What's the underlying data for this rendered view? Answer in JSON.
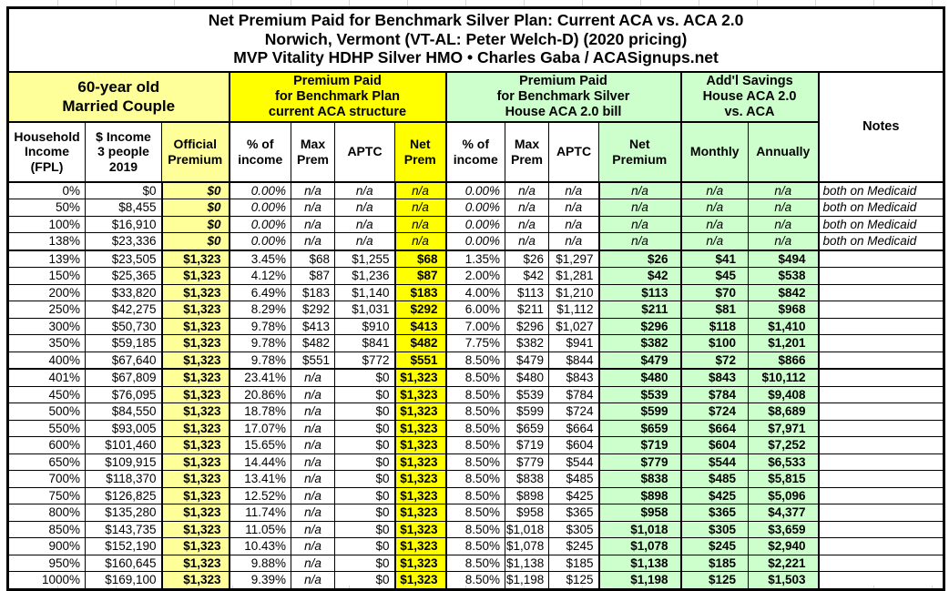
{
  "title": {
    "line1": "Net Premium Paid for Benchmark Silver Plan: Current ACA vs. ACA 2.0",
    "line2": "Norwich, Vermont (VT-AL: Peter Welch-D) (2020 pricing)",
    "line3": "MVP Vitality HDHP Silver HMO • Charles Gaba / ACASignups.net"
  },
  "colors": {
    "pale_yellow": "#FFFF99",
    "bright_yellow": "#FFFF00",
    "light_green": "#CCFFCC",
    "border": "#000000",
    "background": "#FFFFFF"
  },
  "header": {
    "group_household": "60-year old\nMarried Couple",
    "group_current_aca": "Premium Paid\nfor Benchmark Plan\ncurrent ACA structure",
    "group_aca2": "Premium Paid\nfor Benchmark Silver\nHouse ACA 2.0 bill",
    "group_savings": "Add'l Savings\nHouse ACA 2.0\nvs. ACA",
    "notes": "Notes",
    "columns": [
      "Household\nIncome\n(FPL)",
      "$ Income\n3 people\n2019",
      "Official\nPremium",
      "% of\nincome",
      "Max\nPrem",
      "APTC",
      "Net\nPrem",
      "% of\nincome",
      "Max\nPrem",
      "APTC",
      "Net\nPremium",
      "Monthly",
      "Annually"
    ]
  },
  "chart_data": {
    "type": "table",
    "title": "Net Premium Paid for Benchmark Silver Plan: Current ACA vs. ACA 2.0 — Norwich, Vermont (VT-AL: Peter Welch-D) (2020 pricing) — MVP Vitality HDHP Silver HMO",
    "columns": [
      "household_income_fpl",
      "income_3_people_2019",
      "official_premium",
      "aca_pct_of_income",
      "aca_max_prem",
      "aca_aptc",
      "aca_net_prem",
      "aca2_pct_of_income",
      "aca2_max_prem",
      "aca2_aptc",
      "aca2_net_premium",
      "savings_monthly",
      "savings_annually",
      "notes"
    ],
    "rows": [
      [
        "0%",
        "$0",
        "$0",
        "0.00%",
        "n/a",
        "n/a",
        "n/a",
        "0.00%",
        "n/a",
        "n/a",
        "n/a",
        "n/a",
        "n/a",
        "both on Medicaid"
      ],
      [
        "50%",
        "$8,455",
        "$0",
        "0.00%",
        "n/a",
        "n/a",
        "n/a",
        "0.00%",
        "n/a",
        "n/a",
        "n/a",
        "n/a",
        "n/a",
        "both on Medicaid"
      ],
      [
        "100%",
        "$16,910",
        "$0",
        "0.00%",
        "n/a",
        "n/a",
        "n/a",
        "0.00%",
        "n/a",
        "n/a",
        "n/a",
        "n/a",
        "n/a",
        "both on Medicaid"
      ],
      [
        "138%",
        "$23,336",
        "$0",
        "0.00%",
        "n/a",
        "n/a",
        "n/a",
        "0.00%",
        "n/a",
        "n/a",
        "n/a",
        "n/a",
        "n/a",
        "both on Medicaid"
      ],
      [
        "139%",
        "$23,505",
        "$1,323",
        "3.45%",
        "$68",
        "$1,255",
        "$68",
        "1.35%",
        "$26",
        "$1,297",
        "$26",
        "$41",
        "$494",
        ""
      ],
      [
        "150%",
        "$25,365",
        "$1,323",
        "4.12%",
        "$87",
        "$1,236",
        "$87",
        "2.00%",
        "$42",
        "$1,281",
        "$42",
        "$45",
        "$538",
        ""
      ],
      [
        "200%",
        "$33,820",
        "$1,323",
        "6.49%",
        "$183",
        "$1,140",
        "$183",
        "4.00%",
        "$113",
        "$1,210",
        "$113",
        "$70",
        "$842",
        ""
      ],
      [
        "250%",
        "$42,275",
        "$1,323",
        "8.29%",
        "$292",
        "$1,031",
        "$292",
        "6.00%",
        "$211",
        "$1,112",
        "$211",
        "$81",
        "$968",
        ""
      ],
      [
        "300%",
        "$50,730",
        "$1,323",
        "9.78%",
        "$413",
        "$910",
        "$413",
        "7.00%",
        "$296",
        "$1,027",
        "$296",
        "$118",
        "$1,410",
        ""
      ],
      [
        "350%",
        "$59,185",
        "$1,323",
        "9.78%",
        "$482",
        "$841",
        "$482",
        "7.75%",
        "$382",
        "$941",
        "$382",
        "$100",
        "$1,201",
        ""
      ],
      [
        "400%",
        "$67,640",
        "$1,323",
        "9.78%",
        "$551",
        "$772",
        "$551",
        "8.50%",
        "$479",
        "$844",
        "$479",
        "$72",
        "$866",
        ""
      ],
      [
        "401%",
        "$67,809",
        "$1,323",
        "23.41%",
        "n/a",
        "$0",
        "$1,323",
        "8.50%",
        "$480",
        "$843",
        "$480",
        "$843",
        "$10,112",
        ""
      ],
      [
        "450%",
        "$76,095",
        "$1,323",
        "20.86%",
        "n/a",
        "$0",
        "$1,323",
        "8.50%",
        "$539",
        "$784",
        "$539",
        "$784",
        "$9,408",
        ""
      ],
      [
        "500%",
        "$84,550",
        "$1,323",
        "18.78%",
        "n/a",
        "$0",
        "$1,323",
        "8.50%",
        "$599",
        "$724",
        "$599",
        "$724",
        "$8,689",
        ""
      ],
      [
        "550%",
        "$93,005",
        "$1,323",
        "17.07%",
        "n/a",
        "$0",
        "$1,323",
        "8.50%",
        "$659",
        "$664",
        "$659",
        "$664",
        "$7,971",
        ""
      ],
      [
        "600%",
        "$101,460",
        "$1,323",
        "15.65%",
        "n/a",
        "$0",
        "$1,323",
        "8.50%",
        "$719",
        "$604",
        "$719",
        "$604",
        "$7,252",
        ""
      ],
      [
        "650%",
        "$109,915",
        "$1,323",
        "14.44%",
        "n/a",
        "$0",
        "$1,323",
        "8.50%",
        "$779",
        "$544",
        "$779",
        "$544",
        "$6,533",
        ""
      ],
      [
        "700%",
        "$118,370",
        "$1,323",
        "13.41%",
        "n/a",
        "$0",
        "$1,323",
        "8.50%",
        "$838",
        "$485",
        "$838",
        "$485",
        "$5,815",
        ""
      ],
      [
        "750%",
        "$126,825",
        "$1,323",
        "12.52%",
        "n/a",
        "$0",
        "$1,323",
        "8.50%",
        "$898",
        "$425",
        "$898",
        "$425",
        "$5,096",
        ""
      ],
      [
        "800%",
        "$135,280",
        "$1,323",
        "11.74%",
        "n/a",
        "$0",
        "$1,323",
        "8.50%",
        "$958",
        "$365",
        "$958",
        "$365",
        "$4,377",
        ""
      ],
      [
        "850%",
        "$143,735",
        "$1,323",
        "11.05%",
        "n/a",
        "$0",
        "$1,323",
        "8.50%",
        "$1,018",
        "$305",
        "$1,018",
        "$305",
        "$3,659",
        ""
      ],
      [
        "900%",
        "$152,190",
        "$1,323",
        "10.43%",
        "n/a",
        "$0",
        "$1,323",
        "8.50%",
        "$1,078",
        "$245",
        "$1,078",
        "$245",
        "$2,940",
        ""
      ],
      [
        "950%",
        "$160,645",
        "$1,323",
        "9.88%",
        "n/a",
        "$0",
        "$1,323",
        "8.50%",
        "$1,138",
        "$185",
        "$1,138",
        "$185",
        "$2,221",
        ""
      ],
      [
        "1000%",
        "$169,100",
        "$1,323",
        "9.39%",
        "n/a",
        "$0",
        "$1,323",
        "8.50%",
        "$1,198",
        "$125",
        "$1,198",
        "$125",
        "$1,503",
        ""
      ]
    ],
    "row_group_breaks_after": [
      "138%",
      "400%"
    ],
    "layout": {
      "grid": true,
      "thick_section_borders": true
    }
  }
}
